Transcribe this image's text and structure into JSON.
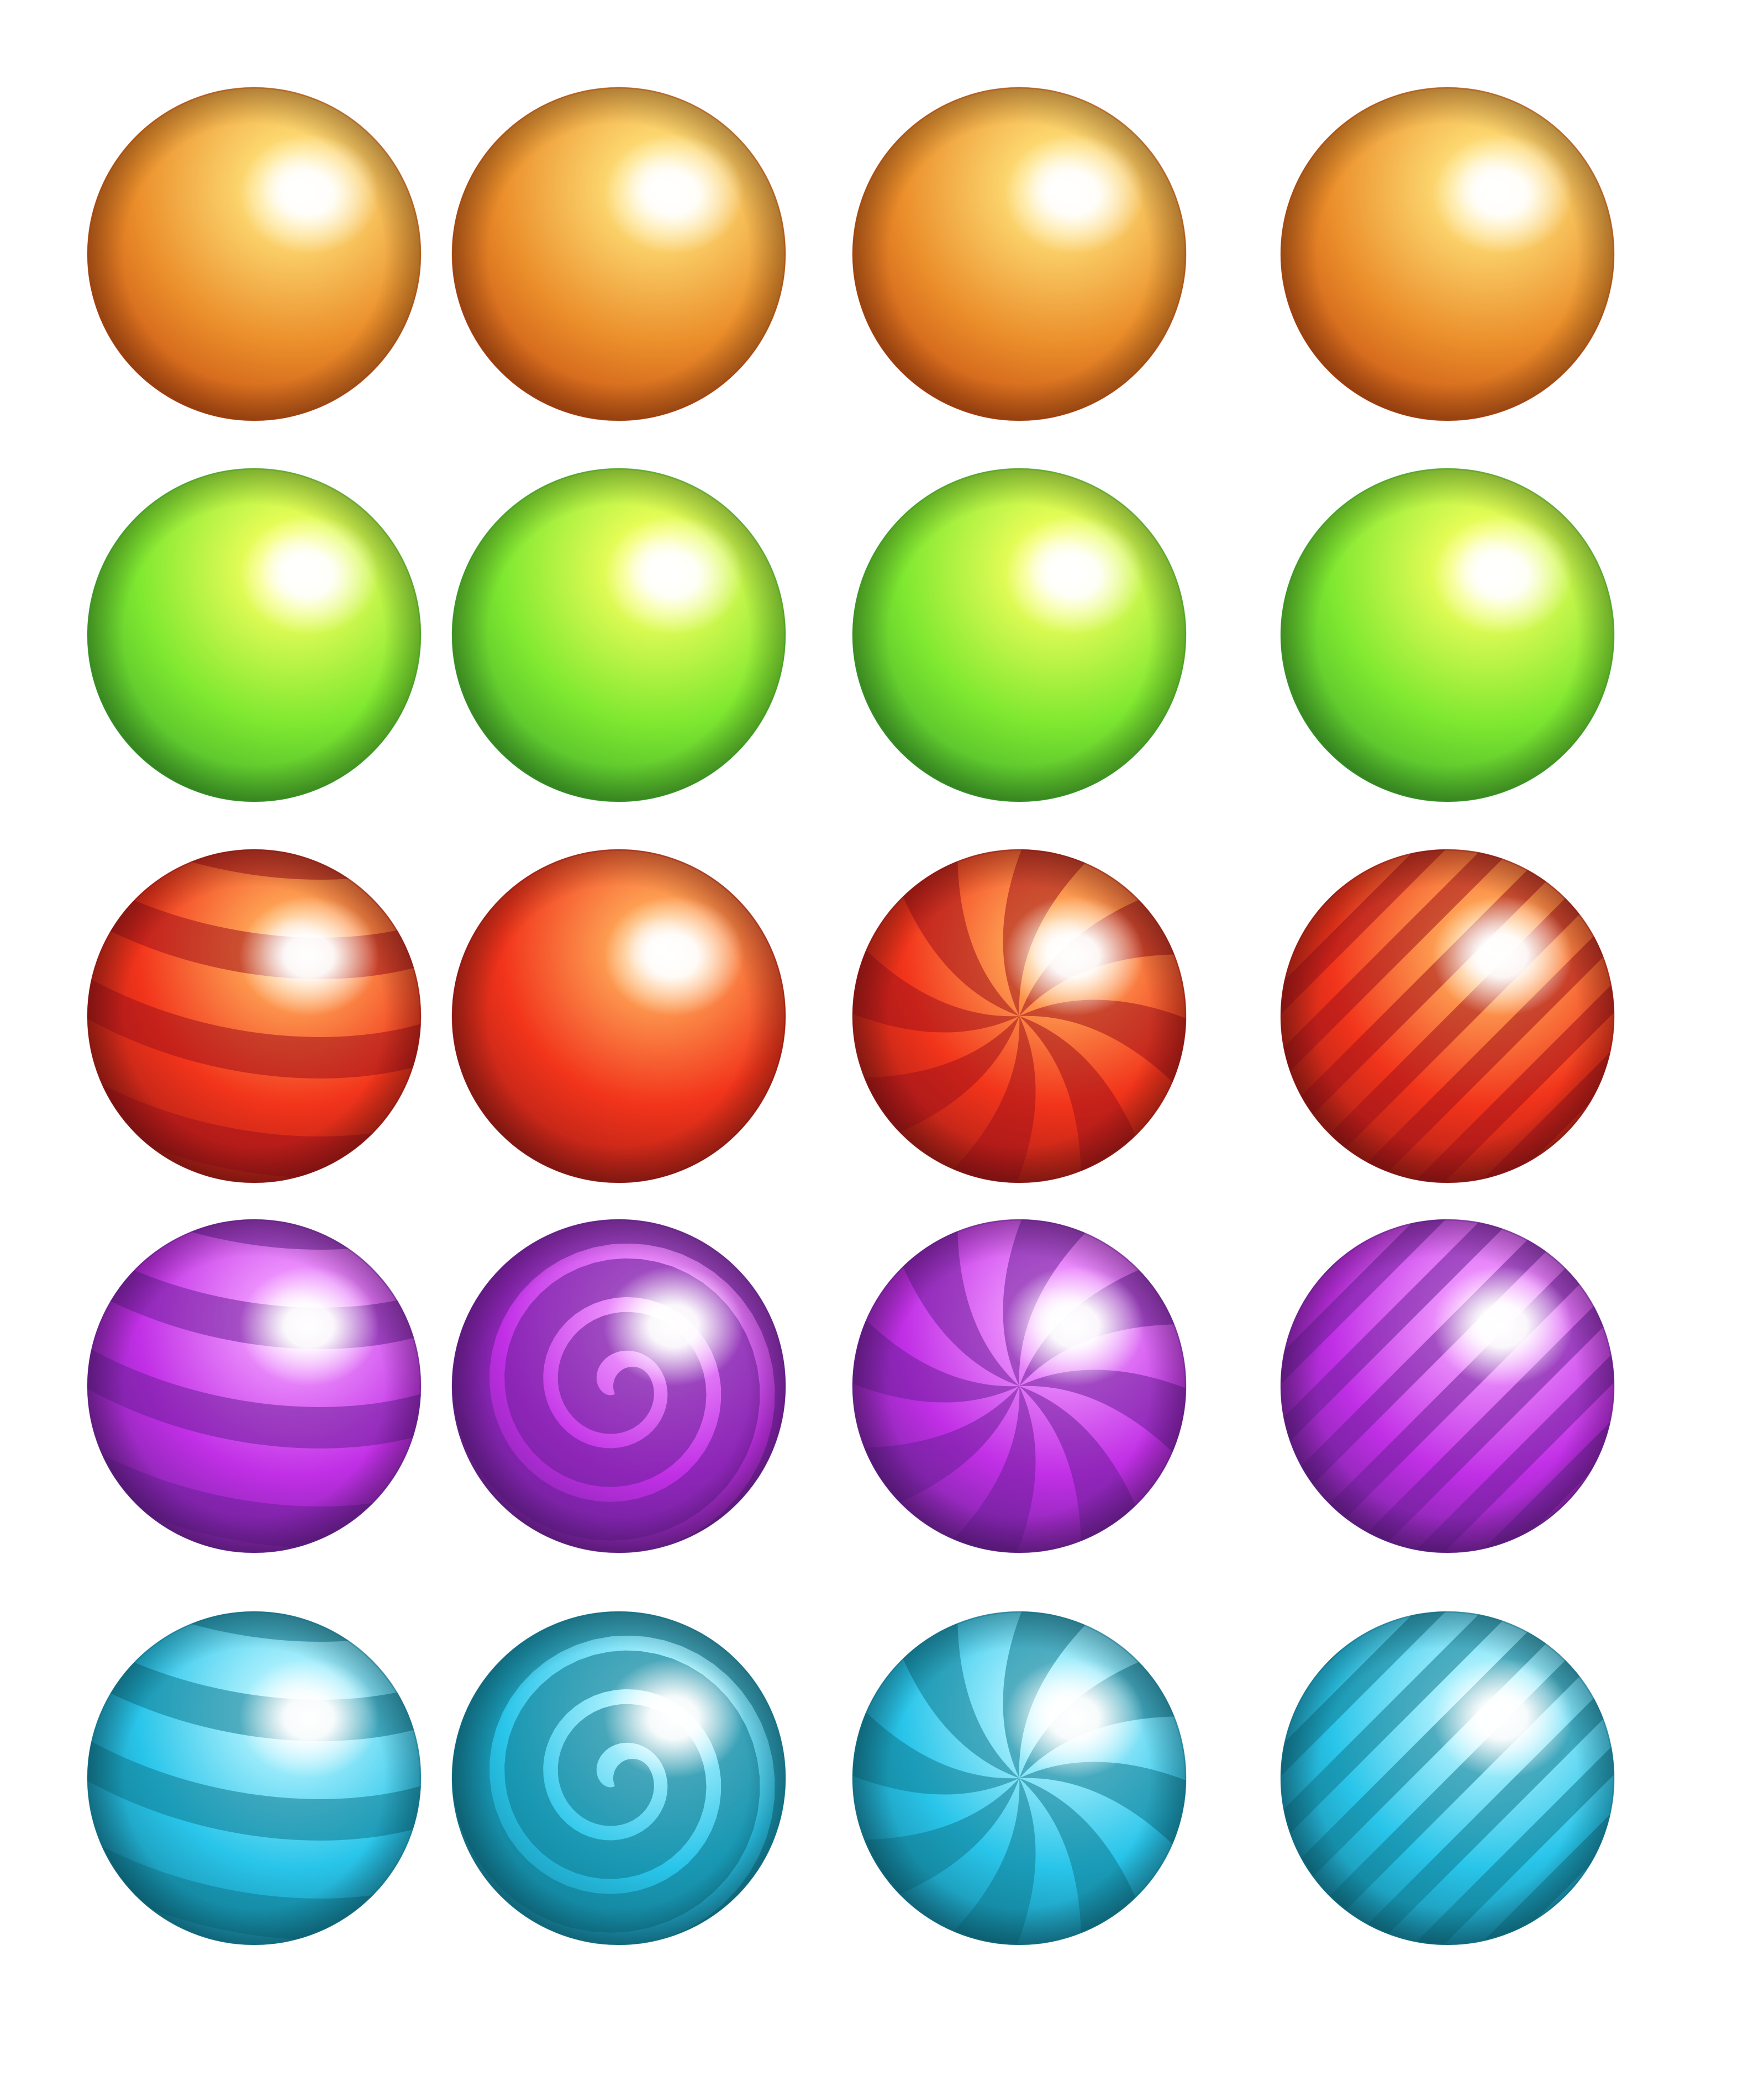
{
  "sprite_sheet": {
    "background": "#ffffff",
    "rows": [
      {
        "color": "orange",
        "palette": {
          "light": "#ffe27a",
          "mid": "#eb8f2b",
          "dark": "#b8390a",
          "stripe": "#b8390a"
        },
        "balls": [
          {
            "pattern": "plain"
          },
          {
            "pattern": "plain"
          },
          {
            "pattern": "plain"
          },
          {
            "pattern": "plain"
          }
        ]
      },
      {
        "color": "green",
        "palette": {
          "light": "#f4ff5c",
          "mid": "#7fe830",
          "dark": "#2f9a2a",
          "stripe": "#2f9a2a"
        },
        "balls": [
          {
            "pattern": "plain"
          },
          {
            "pattern": "plain"
          },
          {
            "pattern": "plain"
          },
          {
            "pattern": "plain"
          }
        ]
      },
      {
        "color": "red",
        "palette": {
          "light": "#ffae5a",
          "mid": "#f2341b",
          "dark": "#8c1515",
          "stripe": "#a3121a"
        },
        "balls": [
          {
            "pattern": "horizontal-stripes"
          },
          {
            "pattern": "plain"
          },
          {
            "pattern": "pinwheel"
          },
          {
            "pattern": "diagonal-stripes"
          }
        ]
      },
      {
        "color": "purple",
        "palette": {
          "light": "#f19bff",
          "mid": "#c12fe6",
          "dark": "#5b1f86",
          "stripe": "#6d1f99"
        },
        "balls": [
          {
            "pattern": "horizontal-stripes"
          },
          {
            "pattern": "spiral"
          },
          {
            "pattern": "pinwheel"
          },
          {
            "pattern": "diagonal-stripes"
          }
        ]
      },
      {
        "color": "cyan",
        "palette": {
          "light": "#b7f4ff",
          "mid": "#29c5ea",
          "dark": "#0f6f86",
          "stripe": "#0f7a8f"
        },
        "balls": [
          {
            "pattern": "horizontal-stripes"
          },
          {
            "pattern": "spiral"
          },
          {
            "pattern": "pinwheel"
          },
          {
            "pattern": "diagonal-stripes"
          }
        ]
      }
    ]
  }
}
